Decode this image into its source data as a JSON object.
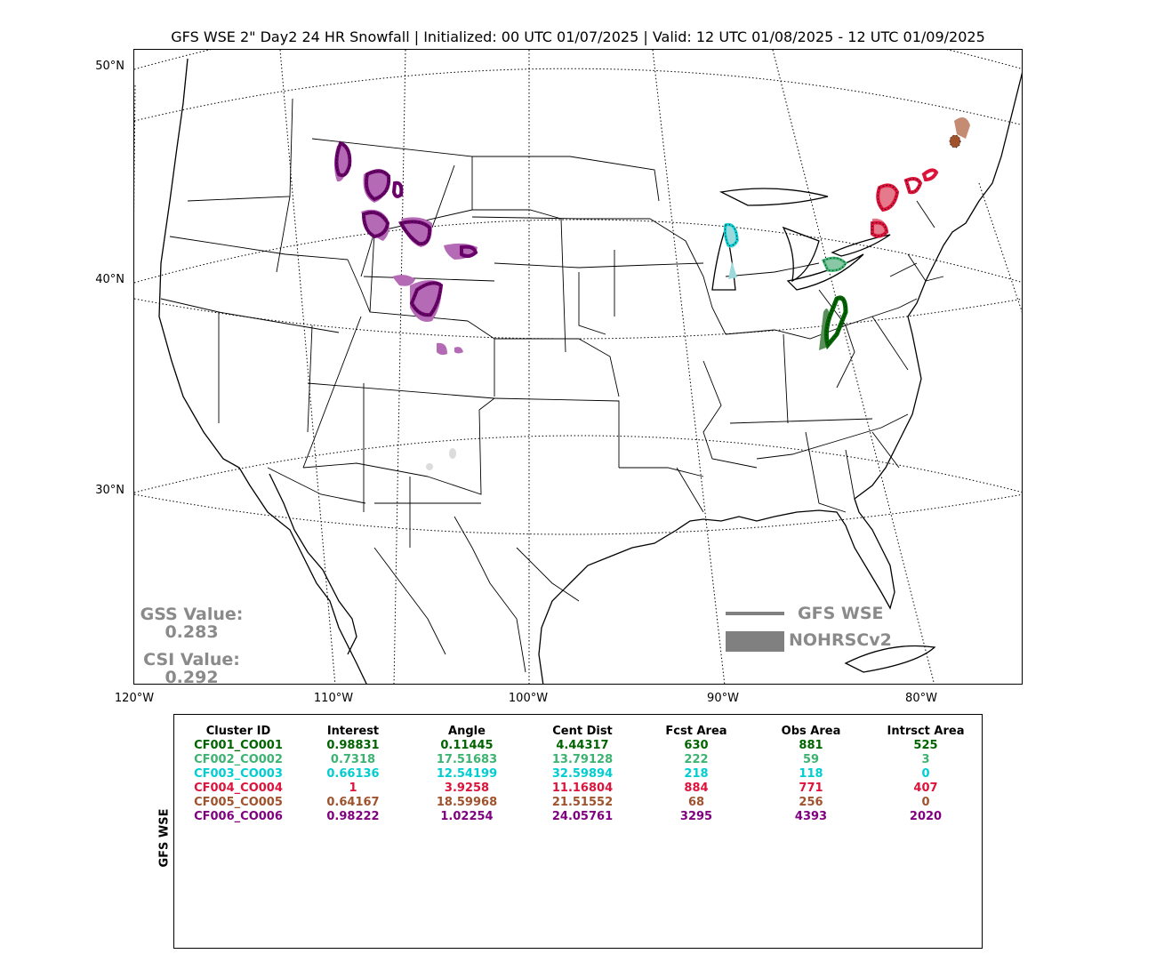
{
  "title": "GFS WSE 2\" Day2 24 HR Snowfall | Initialized: 00 UTC 01/07/2025 | Valid: 12 UTC 01/08/2025 - 12 UTC 01/09/2025",
  "map": {
    "lat_labels": [
      "50°N",
      "40°N",
      "30°N"
    ],
    "lon_labels": [
      "120°W",
      "110°W",
      "100°W",
      "90°W",
      "80°W"
    ],
    "gss_label": "GSS Value:",
    "gss_value": "0.283",
    "csi_label": "CSI Value:",
    "csi_value": "0.292",
    "legend": {
      "forecast_label": "GFS WSE",
      "observed_label": "NOHRSCv2",
      "color": "#808080"
    }
  },
  "stats": {
    "row_label": "GFS WSE",
    "headers": [
      "Cluster ID",
      "Interest",
      "Angle",
      "Cent Dist",
      "Fcst Area",
      "Obs Area",
      "Intrsct Area"
    ],
    "rows": [
      {
        "color": "#006400",
        "values": [
          "CF001_CO001",
          "0.98831",
          "0.11445",
          "4.44317",
          "630",
          "881",
          "525"
        ]
      },
      {
        "color": "#3cb371",
        "values": [
          "CF002_CO002",
          "0.7318",
          "17.51683",
          "13.79128",
          "222",
          "59",
          "3"
        ]
      },
      {
        "color": "#00ced1",
        "values": [
          "CF003_CO003",
          "0.66136",
          "12.54199",
          "32.59894",
          "218",
          "118",
          "0"
        ]
      },
      {
        "color": "#dc143c",
        "values": [
          "CF004_CO004",
          "1",
          "3.9258",
          "11.16804",
          "884",
          "771",
          "407"
        ]
      },
      {
        "color": "#a0522d",
        "values": [
          "CF005_CO005",
          "0.64167",
          "18.59968",
          "21.51552",
          "68",
          "256",
          "0"
        ]
      },
      {
        "color": "#800080",
        "values": [
          "CF006_CO006",
          "0.98222",
          "1.02254",
          "24.05761",
          "3295",
          "4393",
          "2020"
        ]
      }
    ]
  }
}
